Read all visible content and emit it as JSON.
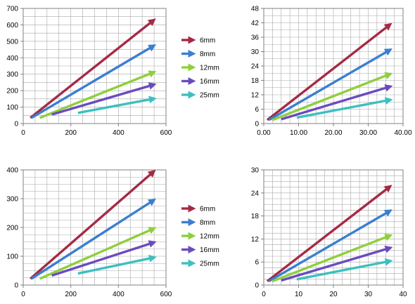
{
  "colors": {
    "6mm": "#a52a45",
    "8mm": "#3a7fd0",
    "12mm": "#8ecf3c",
    "16mm": "#6a4bbf",
    "25mm": "#3cc0bf",
    "grid": "#a8a8a8",
    "axis": "#808080"
  },
  "chart_data": [
    {
      "type": "line",
      "position": "top-left",
      "xlim": [
        0,
        600
      ],
      "ylim": [
        0,
        700
      ],
      "xticks": [
        0,
        200,
        400,
        600
      ],
      "xtick_labels": [
        "0",
        "200",
        "400",
        "600"
      ],
      "yticks": [
        0,
        100,
        200,
        300,
        400,
        500,
        600,
        700
      ],
      "ytick_labels": [
        "0",
        "100",
        "200",
        "300",
        "400",
        "500",
        "600",
        "700"
      ],
      "x_minor_step": 50,
      "y_minor_step": 50,
      "legend_position": "right",
      "series": [
        {
          "name": "6mm",
          "x": [
            30,
            545
          ],
          "y": [
            35,
            625
          ]
        },
        {
          "name": "8mm",
          "x": [
            35,
            545
          ],
          "y": [
            35,
            470
          ]
        },
        {
          "name": "12mm",
          "x": [
            70,
            545
          ],
          "y": [
            35,
            310
          ]
        },
        {
          "name": "16mm",
          "x": [
            120,
            545
          ],
          "y": [
            55,
            235
          ]
        },
        {
          "name": "25mm",
          "x": [
            230,
            545
          ],
          "y": [
            65,
            150
          ]
        }
      ]
    },
    {
      "type": "line",
      "position": "top-right",
      "xlim": [
        0,
        40
      ],
      "ylim": [
        0,
        48
      ],
      "xticks": [
        0,
        10,
        20,
        30,
        40
      ],
      "xtick_labels": [
        "0.00",
        "10.00",
        "20.00",
        "30.00",
        "40.00"
      ],
      "yticks": [
        0,
        6,
        12,
        18,
        24,
        30,
        36,
        42,
        48
      ],
      "ytick_labels": [
        "0",
        "6",
        "12",
        "18",
        "24",
        "30",
        "36",
        "42",
        "48"
      ],
      "x_minor_step": 2.5,
      "y_minor_step": 3,
      "series": [
        {
          "name": "6mm",
          "x": [
            1,
            36
          ],
          "y": [
            1.5,
            41
          ]
        },
        {
          "name": "8mm",
          "x": [
            1.5,
            36
          ],
          "y": [
            1.5,
            30.5
          ]
        },
        {
          "name": "12mm",
          "x": [
            2.5,
            36
          ],
          "y": [
            1.5,
            20.5
          ]
        },
        {
          "name": "16mm",
          "x": [
            5,
            36
          ],
          "y": [
            1.8,
            15.3
          ]
        },
        {
          "name": "25mm",
          "x": [
            9.5,
            36
          ],
          "y": [
            2.5,
            9.8
          ]
        }
      ]
    },
    {
      "type": "line",
      "position": "bottom-left",
      "xlim": [
        0,
        600
      ],
      "ylim": [
        0,
        400
      ],
      "xticks": [
        0,
        200,
        400,
        600
      ],
      "xtick_labels": [
        "0",
        "200",
        "400",
        "600"
      ],
      "yticks": [
        0,
        100,
        200,
        300,
        400
      ],
      "ytick_labels": [
        "0",
        "100",
        "200",
        "300",
        "400"
      ],
      "x_minor_step": 50,
      "y_minor_step": 25,
      "legend_position": "right",
      "series": [
        {
          "name": "6mm",
          "x": [
            30,
            545
          ],
          "y": [
            22,
            392
          ]
        },
        {
          "name": "8mm",
          "x": [
            35,
            545
          ],
          "y": [
            22,
            293
          ]
        },
        {
          "name": "12mm",
          "x": [
            70,
            545
          ],
          "y": [
            22,
            195
          ]
        },
        {
          "name": "16mm",
          "x": [
            120,
            545
          ],
          "y": [
            33,
            147
          ]
        },
        {
          "name": "25mm",
          "x": [
            230,
            545
          ],
          "y": [
            40,
            95
          ]
        }
      ]
    },
    {
      "type": "line",
      "position": "bottom-right",
      "xlim": [
        0,
        40
      ],
      "ylim": [
        0,
        30
      ],
      "xticks": [
        0,
        10,
        20,
        30,
        40
      ],
      "xtick_labels": [
        "0",
        "10",
        "20",
        "30",
        "40"
      ],
      "yticks": [
        0,
        6,
        12,
        18,
        24,
        30
      ],
      "ytick_labels": [
        "0",
        "6",
        "12",
        "18",
        "24",
        "30"
      ],
      "x_minor_step": 2.5,
      "y_minor_step": 1.5,
      "series": [
        {
          "name": "6mm",
          "x": [
            1,
            36
          ],
          "y": [
            1,
            25.5
          ]
        },
        {
          "name": "8mm",
          "x": [
            1.5,
            36
          ],
          "y": [
            1,
            19.2
          ]
        },
        {
          "name": "12mm",
          "x": [
            2.5,
            36
          ],
          "y": [
            1,
            12.8
          ]
        },
        {
          "name": "16mm",
          "x": [
            5,
            36
          ],
          "y": [
            1.2,
            9.6
          ]
        },
        {
          "name": "25mm",
          "x": [
            9.5,
            36
          ],
          "y": [
            1.5,
            6.2
          ]
        }
      ]
    }
  ]
}
